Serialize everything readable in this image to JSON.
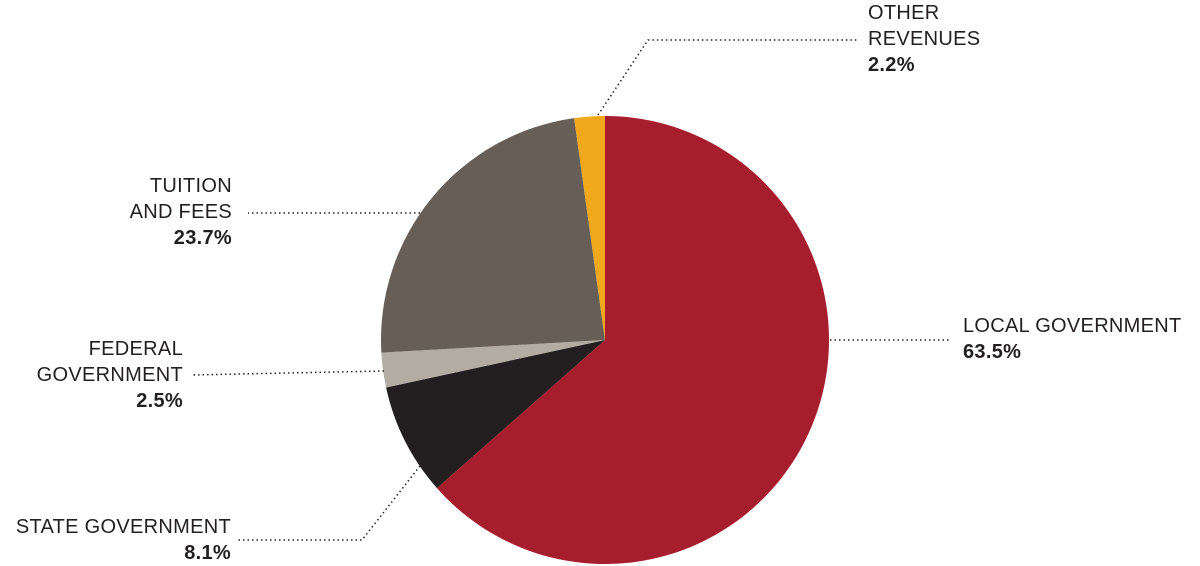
{
  "chart_data": {
    "type": "pie",
    "slices": [
      {
        "label": "LOCAL GOVERNMENT",
        "value": 63.5,
        "value_label": "63.5%",
        "color": "#a61e2e"
      },
      {
        "label": "STATE GOVERNMENT",
        "value": 8.1,
        "value_label": "8.1%",
        "color": "#231f20"
      },
      {
        "label": "FEDERAL GOVERNMENT",
        "value": 2.5,
        "value_label": "2.5%",
        "color": "#b2aca2"
      },
      {
        "label": "TUITION AND FEES",
        "value": 23.7,
        "value_label": "23.7%",
        "color": "#675f57"
      },
      {
        "label": "OTHER REVENUES",
        "value": 2.2,
        "value_label": "2.2%",
        "color": "#f2a81d"
      }
    ],
    "start_angle": "top",
    "direction": "clockwise",
    "legend": "none",
    "leader_lines": "dotted"
  },
  "labels": {
    "local": {
      "line1": "LOCAL GOVERNMENT",
      "pct": "63.5%"
    },
    "state": {
      "line1": "STATE GOVERNMENT",
      "pct": "8.1%"
    },
    "federal": {
      "line1": "FEDERAL",
      "line2": "GOVERNMENT",
      "pct": "2.5%"
    },
    "tuition": {
      "line1": "TUITION",
      "line2": "AND FEES",
      "pct": "23.7%"
    },
    "other": {
      "line1": "OTHER",
      "line2": "REVENUES",
      "pct": "2.2%"
    }
  }
}
